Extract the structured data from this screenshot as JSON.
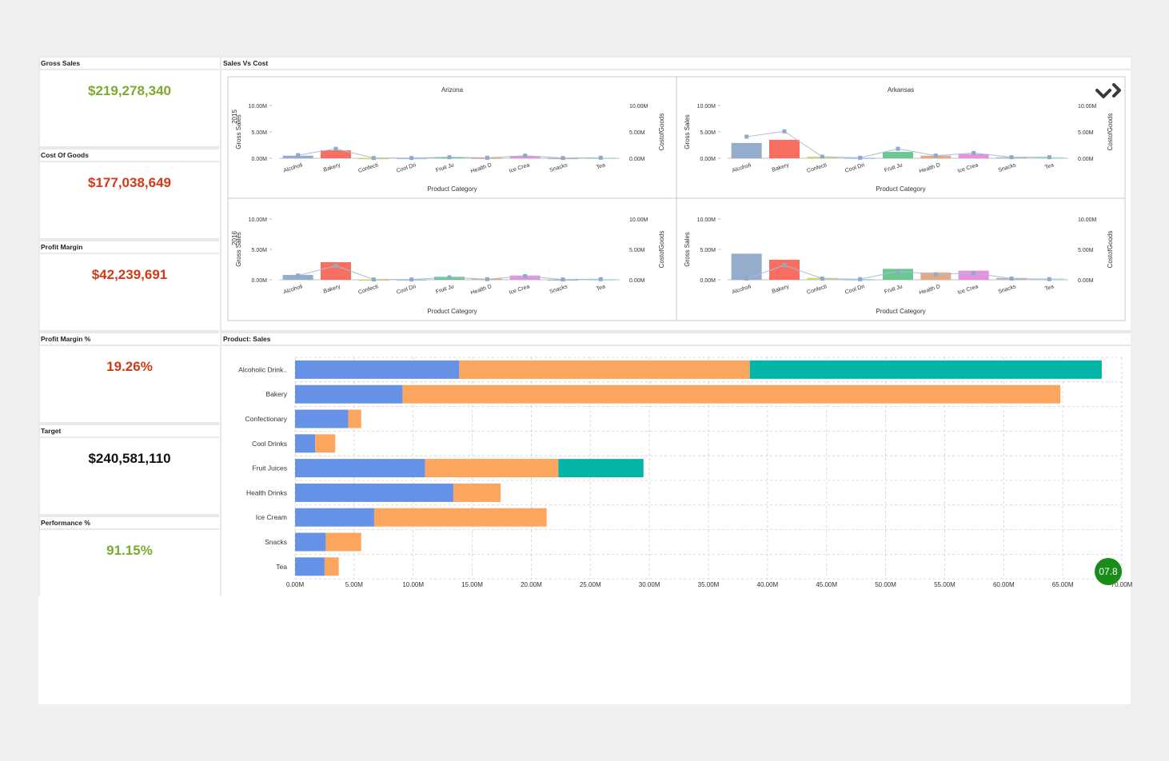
{
  "kpis": [
    {
      "label": "Gross Sales",
      "value": "$219,278,340",
      "color": "#7caa2c"
    },
    {
      "label": "Cost Of Goods",
      "value": "$177,038,649",
      "color": "#d23a17"
    },
    {
      "label": "Profit Margin",
      "value": "$42,239,691",
      "color": "#d23a17"
    },
    {
      "label": "Profit Margin %",
      "value": "19.26%",
      "color": "#d23a17"
    },
    {
      "label": "Target",
      "value": "$240,581,110",
      "color": "#111111"
    },
    {
      "label": "Performance %",
      "value": "91.15%",
      "color": "#7caa2c"
    }
  ],
  "sales_vs_cost": {
    "title": "Sales Vs Cost",
    "x_title": "Product Category",
    "y_left_title": "Gross Sales",
    "y_right_title": "CostofGoods",
    "y_ticks": [
      "0.00M",
      "5.00M",
      "10.00M"
    ],
    "categories": [
      "Alcoholi",
      "Bakery",
      "Confecti",
      "Cool Dri",
      "Fruit Ju",
      "Health D",
      "Ice Crea",
      "Snacks",
      "Tea"
    ],
    "category_colors": [
      "#8fa9c9",
      "#f8675a",
      "#c7d66a",
      "#a7c8d8",
      "#62c48c",
      "#e4a57d",
      "#e58be0",
      "#b5b5b5",
      "#9fd8d8"
    ],
    "columns": [
      "Arizona",
      "Arkansas"
    ],
    "rows": [
      "2015",
      "2016"
    ]
  },
  "chart_data": [
    {
      "type": "bar",
      "title": "Arizona 2015",
      "categories": [
        "Alcoholi",
        "Bakery",
        "Confecti",
        "Cool Dri",
        "Fruit Ju",
        "Health D",
        "Ice Crea",
        "Snacks",
        "Tea"
      ],
      "series": [
        {
          "name": "Gross Sales",
          "values": [
            0.5,
            1.5,
            0.05,
            0.05,
            0.2,
            0.1,
            0.4,
            0.05,
            0.1
          ]
        },
        {
          "name": "CostofGoods",
          "values": [
            0.6,
            1.8,
            0.05,
            0.05,
            0.2,
            0.1,
            0.5,
            0.05,
            0.1
          ]
        }
      ],
      "ylim": [
        0,
        10
      ]
    },
    {
      "type": "bar",
      "title": "Arkansas 2015",
      "categories": [
        "Alcoholi",
        "Bakery",
        "Confecti",
        "Cool Dri",
        "Fruit Ju",
        "Health D",
        "Ice Crea",
        "Snacks",
        "Tea"
      ],
      "series": [
        {
          "name": "Gross Sales",
          "values": [
            2.9,
            3.5,
            0.3,
            0.1,
            1.2,
            0.5,
            0.8,
            0.2,
            0.2
          ]
        },
        {
          "name": "CostofGoods",
          "values": [
            4.1,
            5.1,
            0.3,
            0.1,
            1.8,
            0.5,
            1.0,
            0.2,
            0.2
          ]
        }
      ],
      "ylim": [
        0,
        10
      ]
    },
    {
      "type": "bar",
      "title": "Arizona 2016",
      "categories": [
        "Alcoholi",
        "Bakery",
        "Confecti",
        "Cool Dri",
        "Fruit Ju",
        "Health D",
        "Ice Crea",
        "Snacks",
        "Tea"
      ],
      "series": [
        {
          "name": "Gross Sales",
          "values": [
            0.8,
            2.9,
            0.05,
            0.05,
            0.5,
            0.2,
            0.7,
            0.05,
            0.1
          ]
        },
        {
          "name": "CostofGoods",
          "values": [
            0.7,
            2.3,
            0.05,
            0.05,
            0.4,
            0.1,
            0.6,
            0.05,
            0.1
          ]
        }
      ],
      "ylim": [
        0,
        10
      ]
    },
    {
      "type": "bar",
      "title": "Arkansas 2016",
      "categories": [
        "Alcoholi",
        "Bakery",
        "Confecti",
        "Cool Dri",
        "Fruit Ju",
        "Health D",
        "Ice Crea",
        "Snacks",
        "Tea"
      ],
      "series": [
        {
          "name": "Gross Sales",
          "values": [
            4.3,
            3.3,
            0.3,
            0.1,
            1.8,
            1.2,
            1.5,
            0.3,
            0.2
          ]
        },
        {
          "name": "CostofGoods",
          "values": [
            0.2,
            2.4,
            0.2,
            0.1,
            1.4,
            0.9,
            1.1,
            0.2,
            0.1
          ]
        }
      ],
      "ylim": [
        0,
        10
      ]
    },
    {
      "type": "bar",
      "title": "Product: Sales",
      "orientation": "horizontal",
      "stacked": true,
      "categories": [
        "Alcoholic Drink..",
        "Bakery",
        "Confectionary",
        "Cool Drinks",
        "Fruit Juices",
        "Health Drinks",
        "Ice Cream",
        "Snacks",
        "Tea"
      ],
      "series": [
        {
          "name": "",
          "color": "#6592e6",
          "values": [
            13.9,
            9.1,
            4.5,
            1.7,
            11.0,
            13.4,
            6.7,
            2.6,
            2.5
          ]
        },
        {
          "name": "",
          "color": "#fca55f",
          "values": [
            24.6,
            55.7,
            1.1,
            1.7,
            11.3,
            4.0,
            14.6,
            3.0,
            1.2
          ]
        },
        {
          "name": "",
          "color": "#03b5a7",
          "values": [
            29.8,
            0,
            0,
            0,
            7.2,
            0,
            0,
            0,
            0
          ]
        }
      ],
      "x_ticks": [
        "0.00M",
        "5.00M",
        "10.00M",
        "15.00M",
        "20.00M",
        "25.00M",
        "30.00M",
        "35.00M",
        "40.00M",
        "45.00M",
        "50.00M",
        "55.00M",
        "60.00M",
        "65.00M",
        "70.00M"
      ],
      "xlim": [
        0,
        70
      ],
      "grid": true
    }
  ],
  "product_sales": {
    "title": "Product: Sales"
  },
  "badge": {
    "value": "07.8",
    "color": "#1a8c1a"
  },
  "icons": {
    "expand": "chevron-down-icon",
    "next": "chevron-right-icon"
  }
}
